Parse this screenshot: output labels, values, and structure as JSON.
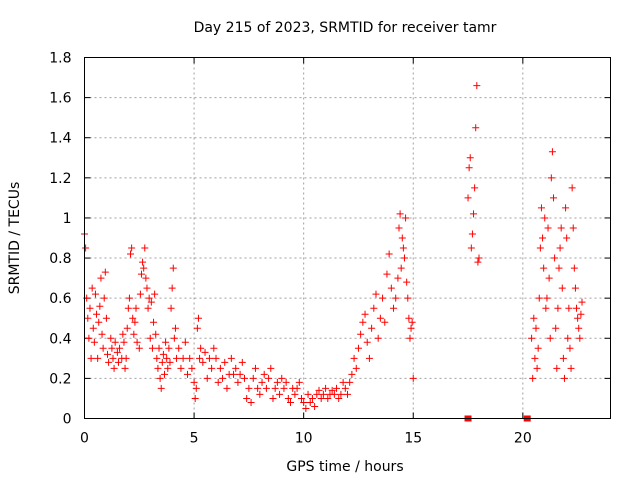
{
  "chart_data": {
    "type": "scatter",
    "title": "Day 215 of 2023, SRMTID for receiver tamr",
    "xlabel": "GPS time / hours",
    "ylabel": "SRMTID / TECUs",
    "xlim": [
      0,
      24
    ],
    "ylim": [
      0,
      1.8
    ],
    "xticks": [
      0,
      5,
      10,
      15,
      20
    ],
    "xtick_labels": [
      "0",
      "5",
      "10",
      "15",
      "20"
    ],
    "yticks": [
      0,
      0.2,
      0.4,
      0.6,
      0.8,
      1,
      1.2,
      1.4,
      1.6,
      1.8
    ],
    "ytick_labels": [
      "0",
      "0.2",
      "0.4",
      "0.6",
      "0.8",
      "1",
      "1.2",
      "1.4",
      "1.6",
      "1.8"
    ],
    "grid": true,
    "marker": "plus",
    "color": "#ff0000",
    "series": [
      {
        "name": "SRMTID",
        "points": [
          [
            0.0,
            0.92
          ],
          [
            0.05,
            0.85
          ],
          [
            0.1,
            0.6
          ],
          [
            0.15,
            0.5
          ],
          [
            0.2,
            0.4
          ],
          [
            0.25,
            0.55
          ],
          [
            0.3,
            0.3
          ],
          [
            0.35,
            0.65
          ],
          [
            0.4,
            0.45
          ],
          [
            0.45,
            0.38
          ],
          [
            0.5,
            0.62
          ],
          [
            0.55,
            0.52
          ],
          [
            0.6,
            0.3
          ],
          [
            0.65,
            0.48
          ],
          [
            0.7,
            0.56
          ],
          [
            0.75,
            0.7
          ],
          [
            0.8,
            0.42
          ],
          [
            0.85,
            0.35
          ],
          [
            0.9,
            0.6
          ],
          [
            0.95,
            0.73
          ],
          [
            1.0,
            0.5
          ],
          [
            1.05,
            0.32
          ],
          [
            1.1,
            0.28
          ],
          [
            1.2,
            0.4
          ],
          [
            1.25,
            0.35
          ],
          [
            1.3,
            0.3
          ],
          [
            1.35,
            0.25
          ],
          [
            1.4,
            0.38
          ],
          [
            1.5,
            0.33
          ],
          [
            1.55,
            0.28
          ],
          [
            1.6,
            0.35
          ],
          [
            1.7,
            0.3
          ],
          [
            1.75,
            0.42
          ],
          [
            1.8,
            0.38
          ],
          [
            1.85,
            0.25
          ],
          [
            1.9,
            0.3
          ],
          [
            1.95,
            0.45
          ],
          [
            2.0,
            0.55
          ],
          [
            2.05,
            0.6
          ],
          [
            2.1,
            0.82
          ],
          [
            2.15,
            0.85
          ],
          [
            2.2,
            0.5
          ],
          [
            2.25,
            0.42
          ],
          [
            2.3,
            0.48
          ],
          [
            2.35,
            0.55
          ],
          [
            2.4,
            0.38
          ],
          [
            2.5,
            0.35
          ],
          [
            2.55,
            0.62
          ],
          [
            2.6,
            0.72
          ],
          [
            2.65,
            0.78
          ],
          [
            2.7,
            0.75
          ],
          [
            2.75,
            0.85
          ],
          [
            2.8,
            0.7
          ],
          [
            2.85,
            0.65
          ],
          [
            2.9,
            0.55
          ],
          [
            2.95,
            0.6
          ],
          [
            3.0,
            0.4
          ],
          [
            3.05,
            0.58
          ],
          [
            3.1,
            0.35
          ],
          [
            3.15,
            0.48
          ],
          [
            3.2,
            0.62
          ],
          [
            3.25,
            0.42
          ],
          [
            3.3,
            0.3
          ],
          [
            3.35,
            0.25
          ],
          [
            3.4,
            0.35
          ],
          [
            3.45,
            0.2
          ],
          [
            3.5,
            0.15
          ],
          [
            3.55,
            0.28
          ],
          [
            3.6,
            0.32
          ],
          [
            3.65,
            0.22
          ],
          [
            3.7,
            0.38
          ],
          [
            3.75,
            0.3
          ],
          [
            3.8,
            0.25
          ],
          [
            3.85,
            0.35
          ],
          [
            3.9,
            0.28
          ],
          [
            3.95,
            0.55
          ],
          [
            4.0,
            0.65
          ],
          [
            4.05,
            0.75
          ],
          [
            4.1,
            0.4
          ],
          [
            4.15,
            0.45
          ],
          [
            4.2,
            0.3
          ],
          [
            4.3,
            0.35
          ],
          [
            4.4,
            0.25
          ],
          [
            4.5,
            0.3
          ],
          [
            4.6,
            0.38
          ],
          [
            4.7,
            0.22
          ],
          [
            4.8,
            0.3
          ],
          [
            4.9,
            0.25
          ],
          [
            5.0,
            0.18
          ],
          [
            5.05,
            0.1
          ],
          [
            5.1,
            0.15
          ],
          [
            5.15,
            0.45
          ],
          [
            5.2,
            0.5
          ],
          [
            5.25,
            0.3
          ],
          [
            5.3,
            0.35
          ],
          [
            5.4,
            0.28
          ],
          [
            5.5,
            0.33
          ],
          [
            5.6,
            0.2
          ],
          [
            5.7,
            0.3
          ],
          [
            5.8,
            0.25
          ],
          [
            5.9,
            0.35
          ],
          [
            6.0,
            0.3
          ],
          [
            6.1,
            0.18
          ],
          [
            6.2,
            0.25
          ],
          [
            6.3,
            0.2
          ],
          [
            6.4,
            0.28
          ],
          [
            6.5,
            0.15
          ],
          [
            6.6,
            0.22
          ],
          [
            6.7,
            0.3
          ],
          [
            6.8,
            0.22
          ],
          [
            6.9,
            0.25
          ],
          [
            7.0,
            0.18
          ],
          [
            7.1,
            0.22
          ],
          [
            7.2,
            0.28
          ],
          [
            7.3,
            0.2
          ],
          [
            7.4,
            0.1
          ],
          [
            7.5,
            0.15
          ],
          [
            7.6,
            0.08
          ],
          [
            7.7,
            0.2
          ],
          [
            7.8,
            0.25
          ],
          [
            7.9,
            0.15
          ],
          [
            8.0,
            0.12
          ],
          [
            8.1,
            0.18
          ],
          [
            8.2,
            0.22
          ],
          [
            8.3,
            0.15
          ],
          [
            8.4,
            0.2
          ],
          [
            8.5,
            0.25
          ],
          [
            8.6,
            0.1
          ],
          [
            8.7,
            0.15
          ],
          [
            8.8,
            0.18
          ],
          [
            8.9,
            0.12
          ],
          [
            9.0,
            0.2
          ],
          [
            9.1,
            0.15
          ],
          [
            9.2,
            0.18
          ],
          [
            9.3,
            0.1
          ],
          [
            9.4,
            0.08
          ],
          [
            9.5,
            0.15
          ],
          [
            9.6,
            0.12
          ],
          [
            9.7,
            0.15
          ],
          [
            9.8,
            0.18
          ],
          [
            9.9,
            0.1
          ],
          [
            10.0,
            0.08
          ],
          [
            10.1,
            0.05
          ],
          [
            10.2,
            0.12
          ],
          [
            10.3,
            0.08
          ],
          [
            10.4,
            0.1
          ],
          [
            10.5,
            0.06
          ],
          [
            10.6,
            0.12
          ],
          [
            10.7,
            0.14
          ],
          [
            10.8,
            0.1
          ],
          [
            10.9,
            0.12
          ],
          [
            11.0,
            0.15
          ],
          [
            11.1,
            0.1
          ],
          [
            11.2,
            0.12
          ],
          [
            11.3,
            0.14
          ],
          [
            11.4,
            0.12
          ],
          [
            11.5,
            0.15
          ],
          [
            11.6,
            0.1
          ],
          [
            11.7,
            0.12
          ],
          [
            11.8,
            0.18
          ],
          [
            11.9,
            0.15
          ],
          [
            12.0,
            0.12
          ],
          [
            12.1,
            0.18
          ],
          [
            12.2,
            0.22
          ],
          [
            12.3,
            0.3
          ],
          [
            12.4,
            0.25
          ],
          [
            12.5,
            0.35
          ],
          [
            12.6,
            0.42
          ],
          [
            12.7,
            0.48
          ],
          [
            12.8,
            0.52
          ],
          [
            12.9,
            0.38
          ],
          [
            13.0,
            0.3
          ],
          [
            13.1,
            0.45
          ],
          [
            13.2,
            0.55
          ],
          [
            13.3,
            0.62
          ],
          [
            13.4,
            0.4
          ],
          [
            13.5,
            0.5
          ],
          [
            13.6,
            0.6
          ],
          [
            13.7,
            0.48
          ],
          [
            13.8,
            0.72
          ],
          [
            13.9,
            0.82
          ],
          [
            14.0,
            0.65
          ],
          [
            14.1,
            0.55
          ],
          [
            14.2,
            0.6
          ],
          [
            14.3,
            0.7
          ],
          [
            14.35,
            0.95
          ],
          [
            14.4,
            1.02
          ],
          [
            14.45,
            0.75
          ],
          [
            14.5,
            0.9
          ],
          [
            14.55,
            0.85
          ],
          [
            14.6,
            0.8
          ],
          [
            14.65,
            1.0
          ],
          [
            14.7,
            0.68
          ],
          [
            14.75,
            0.6
          ],
          [
            14.8,
            0.5
          ],
          [
            14.85,
            0.4
          ],
          [
            14.9,
            0.45
          ],
          [
            14.95,
            0.48
          ],
          [
            15.0,
            0.2
          ],
          [
            17.5,
            1.1
          ],
          [
            17.55,
            1.25
          ],
          [
            17.6,
            1.3
          ],
          [
            17.65,
            0.85
          ],
          [
            17.7,
            0.92
          ],
          [
            17.75,
            1.02
          ],
          [
            17.8,
            1.15
          ],
          [
            17.85,
            1.45
          ],
          [
            17.9,
            1.66
          ],
          [
            17.95,
            0.78
          ],
          [
            18.0,
            0.8
          ],
          [
            20.4,
            0.4
          ],
          [
            20.45,
            0.2
          ],
          [
            20.5,
            0.5
          ],
          [
            20.55,
            0.3
          ],
          [
            20.6,
            0.45
          ],
          [
            20.65,
            0.25
          ],
          [
            20.7,
            0.35
          ],
          [
            20.75,
            0.6
          ],
          [
            20.8,
            0.85
          ],
          [
            20.85,
            1.05
          ],
          [
            20.9,
            0.9
          ],
          [
            20.95,
            0.75
          ],
          [
            21.0,
            1.0
          ],
          [
            21.05,
            0.55
          ],
          [
            21.1,
            0.6
          ],
          [
            21.15,
            0.95
          ],
          [
            21.2,
            0.7
          ],
          [
            21.25,
            0.4
          ],
          [
            21.3,
            1.2
          ],
          [
            21.35,
            1.33
          ],
          [
            21.4,
            1.1
          ],
          [
            21.45,
            0.8
          ],
          [
            21.5,
            0.45
          ],
          [
            21.55,
            0.25
          ],
          [
            21.6,
            0.55
          ],
          [
            21.65,
            0.75
          ],
          [
            21.7,
            0.85
          ],
          [
            21.75,
            0.95
          ],
          [
            21.8,
            0.65
          ],
          [
            21.85,
            0.3
          ],
          [
            21.9,
            0.2
          ],
          [
            21.95,
            1.05
          ],
          [
            22.0,
            0.9
          ],
          [
            22.05,
            0.4
          ],
          [
            22.1,
            0.55
          ],
          [
            22.15,
            0.35
          ],
          [
            22.2,
            0.25
          ],
          [
            22.25,
            1.15
          ],
          [
            22.3,
            0.95
          ],
          [
            22.35,
            0.75
          ],
          [
            22.4,
            0.65
          ],
          [
            22.45,
            0.55
          ],
          [
            22.5,
            0.5
          ],
          [
            22.55,
            0.45
          ],
          [
            22.6,
            0.4
          ],
          [
            22.65,
            0.52
          ],
          [
            22.7,
            0.58
          ]
        ]
      }
    ],
    "zero_markers": [
      17.5,
      20.2
    ]
  }
}
